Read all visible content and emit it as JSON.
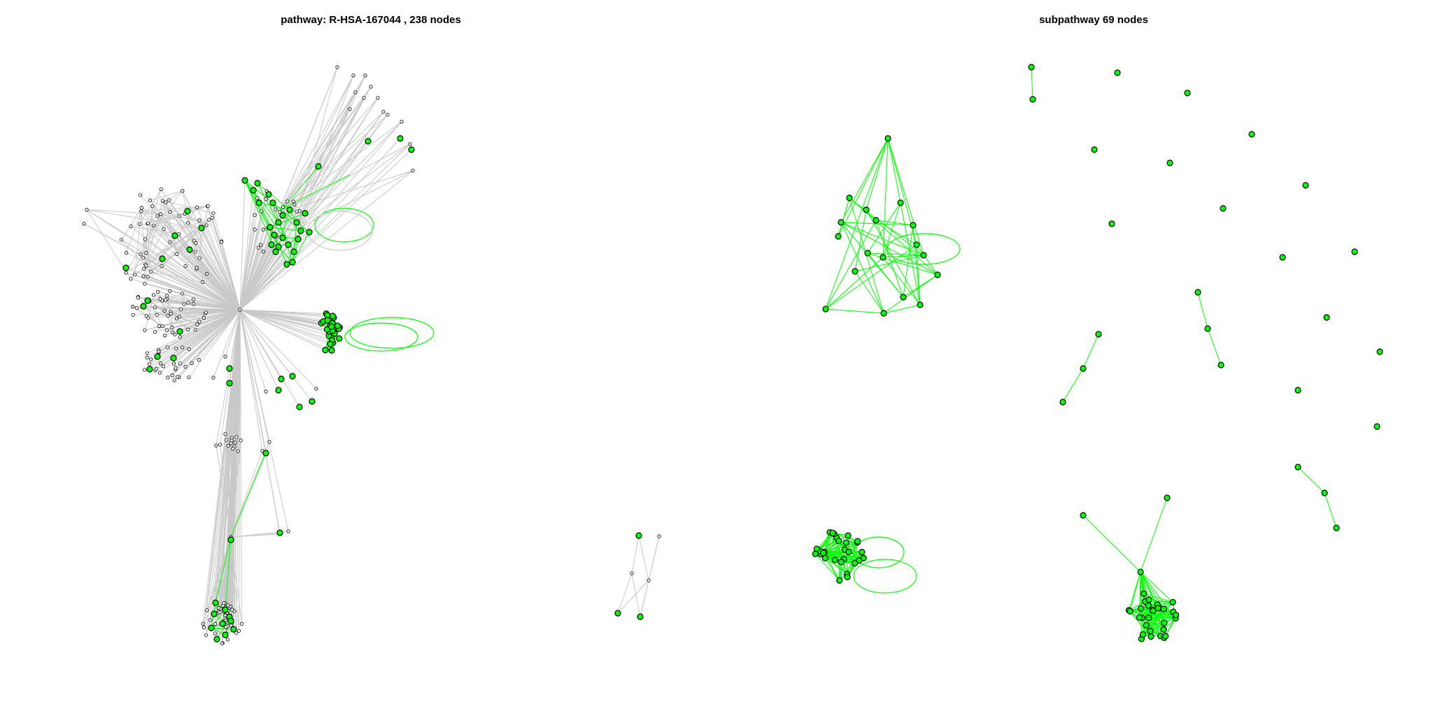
{
  "titles": {
    "left": "pathway: R-HSA-167044 , 238 nodes",
    "right": "subpathway 69 nodes"
  },
  "colors": {
    "highlight": "#00ff00",
    "background_edge": "#c8c8c8",
    "node_stroke": "#000000",
    "background_node": "#ffffff"
  }
}
